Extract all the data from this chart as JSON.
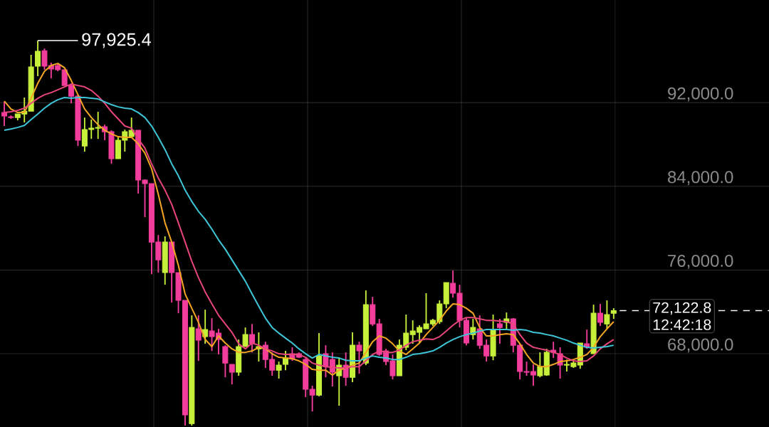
{
  "chart_data": {
    "type": "candlestick",
    "categories": [
      null,
      null,
      null,
      null,
      null,
      null,
      null,
      null,
      null,
      null,
      null,
      null,
      null,
      null,
      null,
      null,
      null,
      null,
      null,
      null,
      null,
      null,
      null,
      null,
      null,
      null,
      null,
      null,
      null,
      null,
      null,
      null,
      null,
      null,
      null,
      null,
      null,
      null,
      null,
      null,
      null,
      null,
      null,
      null,
      null,
      null,
      null,
      null,
      null,
      null,
      null,
      null,
      null,
      null,
      null,
      null,
      null,
      null,
      null,
      null,
      null,
      null,
      null,
      null,
      null,
      null,
      null,
      null,
      null,
      null,
      null,
      null,
      null,
      null,
      null,
      null,
      null,
      null,
      null,
      null,
      null,
      null,
      null,
      null,
      null,
      null,
      null,
      null,
      null,
      null,
      null,
      null
    ],
    "ohlc": [
      [
        91050,
        92070,
        89760,
        90710
      ],
      [
        90640,
        90780,
        90440,
        90570
      ],
      [
        90570,
        90910,
        90300,
        90910
      ],
      [
        90910,
        92480,
        90100,
        91180
      ],
      [
        91180,
        96560,
        91180,
        95400
      ],
      [
        95470,
        97925.4,
        94520,
        96900
      ],
      [
        96960,
        97170,
        95130,
        95470
      ],
      [
        95540,
        95810,
        94310,
        95200
      ],
      [
        95540,
        95740,
        94990,
        95130
      ],
      [
        95130,
        95200,
        93630,
        93630
      ],
      [
        93630,
        93770,
        91930,
        92610
      ],
      [
        92610,
        92750,
        87850,
        88400
      ],
      [
        87850,
        90570,
        87310,
        89420
      ],
      [
        89420,
        90370,
        88530,
        89550
      ],
      [
        89550,
        91120,
        88530,
        89620
      ],
      [
        89690,
        89890,
        88400,
        89210
      ],
      [
        89210,
        89350,
        86150,
        86630
      ],
      [
        86630,
        88670,
        86630,
        88400
      ],
      [
        88400,
        89420,
        87310,
        89210
      ],
      [
        88740,
        90570,
        88670,
        89350
      ],
      [
        89350,
        89350,
        83300,
        84590
      ],
      [
        84590,
        84660,
        81050,
        84250
      ],
      [
        84250,
        84250,
        75610,
        78670
      ],
      [
        78670,
        79350,
        75750,
        76970
      ],
      [
        75750,
        79220,
        74590,
        78670
      ],
      [
        78670,
        78670,
        72890,
        75750
      ],
      [
        75750,
        75750,
        71870,
        73100
      ],
      [
        73100,
        73100,
        61130,
        62150
      ],
      [
        61330,
        71670,
        61130,
        70510
      ],
      [
        70380,
        71670,
        67320,
        69290
      ],
      [
        69630,
        72210,
        68950,
        70310
      ],
      [
        70170,
        71400,
        68270,
        69630
      ],
      [
        69970,
        70380,
        67930,
        69360
      ],
      [
        68680,
        68810,
        65750,
        67110
      ],
      [
        66980,
        66980,
        65070,
        66230
      ],
      [
        66230,
        69360,
        65890,
        68680
      ],
      [
        68680,
        70510,
        68680,
        69830
      ],
      [
        69830,
        70850,
        68130,
        68950
      ],
      [
        68470,
        70040,
        67250,
        68680
      ],
      [
        68810,
        69150,
        66640,
        67450
      ],
      [
        67450,
        68130,
        65890,
        66430
      ],
      [
        66430,
        67250,
        65620,
        66910
      ],
      [
        66980,
        68270,
        66430,
        67590
      ],
      [
        68000,
        68610,
        67320,
        67520
      ],
      [
        68000,
        68130,
        67590,
        67660
      ],
      [
        67450,
        67590,
        63850,
        64600
      ],
      [
        64600,
        64940,
        62490,
        64050
      ],
      [
        64050,
        69970,
        63920,
        67790
      ],
      [
        68000,
        68810,
        65750,
        66770
      ],
      [
        67450,
        68130,
        64870,
        66230
      ],
      [
        65890,
        67660,
        63030,
        66910
      ],
      [
        66910,
        68130,
        64940,
        65750
      ],
      [
        65750,
        70040,
        65280,
        68810
      ],
      [
        68810,
        69150,
        66090,
        68270
      ],
      [
        67110,
        74050,
        66910,
        72690
      ],
      [
        72690,
        73440,
        70650,
        70850
      ],
      [
        70850,
        71330,
        67790,
        67930
      ],
      [
        68270,
        68470,
        66910,
        67250
      ],
      [
        67320,
        67930,
        65550,
        65890
      ],
      [
        65890,
        69360,
        65890,
        68810
      ],
      [
        68610,
        71740,
        68340,
        69970
      ],
      [
        69830,
        71190,
        68950,
        70170
      ],
      [
        70040,
        70720,
        69020,
        70510
      ],
      [
        70380,
        73780,
        70380,
        70850
      ],
      [
        70850,
        71330,
        70650,
        71190
      ],
      [
        71060,
        73100,
        70850,
        72760
      ],
      [
        72760,
        74800,
        72350,
        74800
      ],
      [
        74730,
        75950,
        73370,
        73780
      ],
      [
        73780,
        74590,
        70510,
        71190
      ],
      [
        71190,
        71400,
        68810,
        69020
      ],
      [
        69830,
        71330,
        69360,
        70510
      ],
      [
        70380,
        71670,
        68470,
        68810
      ],
      [
        68810,
        69360,
        67250,
        67790
      ],
      [
        67790,
        71740,
        67380,
        70310
      ],
      [
        70850,
        71330,
        68950,
        70510
      ],
      [
        70990,
        71940,
        70380,
        71330
      ],
      [
        71330,
        71400,
        68130,
        68810
      ],
      [
        68810,
        69020,
        65550,
        66300
      ],
      [
        66300,
        67250,
        65890,
        66230
      ],
      [
        66300,
        66980,
        64940,
        65960
      ],
      [
        65890,
        68130,
        65750,
        66770
      ],
      [
        65960,
        68470,
        65890,
        68130
      ],
      [
        68340,
        69150,
        67590,
        68130
      ],
      [
        68000,
        68610,
        65620,
        66910
      ],
      [
        66910,
        67450,
        66300,
        66980
      ],
      [
        66770,
        67320,
        66640,
        67110
      ],
      [
        66910,
        69020,
        66570,
        69020
      ],
      [
        68950,
        70310,
        68470,
        68610
      ],
      [
        68000,
        72690,
        68000,
        71870
      ],
      [
        71870,
        72760,
        70650,
        70990
      ],
      [
        70850,
        73100,
        70380,
        71740
      ],
      [
        71870,
        72350,
        71330,
        72122.8
      ]
    ],
    "colors": [
      "#f23d9c",
      "#f23d9c",
      "#c6f03a",
      "#c6f03a",
      "#c6f03a",
      "#c6f03a",
      "#f23d9c",
      "#f23d9c",
      "#f23d9c",
      "#f23d9c",
      "#f23d9c",
      "#f23d9c",
      "#c6f03a",
      "#c6f03a",
      "#c6f03a",
      "#f23d9c",
      "#f23d9c",
      "#c6f03a",
      "#c6f03a",
      "#c6f03a",
      "#f23d9c",
      "#f23d9c",
      "#f23d9c",
      "#f23d9c",
      "#c6f03a",
      "#f23d9c",
      "#f23d9c",
      "#f23d9c",
      "#c6f03a",
      "#f23d9c",
      "#c6f03a",
      "#f23d9c",
      "#f23d9c",
      "#f23d9c",
      "#f23d9c",
      "#c6f03a",
      "#c6f03a",
      "#f23d9c",
      "#c6f03a",
      "#f23d9c",
      "#f23d9c",
      "#c6f03a",
      "#c6f03a",
      "#f23d9c",
      "#f23d9c",
      "#f23d9c",
      "#f23d9c",
      "#c6f03a",
      "#f23d9c",
      "#f23d9c",
      "#c6f03a",
      "#f23d9c",
      "#c6f03a",
      "#f23d9c",
      "#c6f03a",
      "#f23d9c",
      "#f23d9c",
      "#f23d9c",
      "#f23d9c",
      "#c6f03a",
      "#c6f03a",
      "#c6f03a",
      "#c6f03a",
      "#c6f03a",
      "#c6f03a",
      "#c6f03a",
      "#c6f03a",
      "#f23d9c",
      "#f23d9c",
      "#f23d9c",
      "#c6f03a",
      "#f23d9c",
      "#f23d9c",
      "#c6f03a",
      "#f23d9c",
      "#c6f03a",
      "#f23d9c",
      "#f23d9c",
      "#f23d9c",
      "#f23d9c",
      "#c6f03a",
      "#c6f03a",
      "#f23d9c",
      "#f23d9c",
      "#c6f03a",
      "#c6f03a",
      "#c6f03a",
      "#f23d9c",
      "#c6f03a",
      "#f23d9c",
      "#c6f03a",
      "#c6f03a"
    ],
    "series": [
      {
        "type": "line",
        "color": "#f5a623",
        "values": [
          92140,
          91390,
          91050,
          91050,
          92410,
          93840,
          94990,
          95540,
          95740,
          95330,
          94110,
          92750,
          91390,
          90570,
          89890,
          89350,
          89010,
          88740,
          88670,
          88670,
          88060,
          87170,
          85680,
          83230,
          80510,
          78670,
          76430,
          73710,
          72350,
          70990,
          69360,
          68680,
          69700,
          69020,
          68470,
          68130,
          68130,
          68270,
          68610,
          68470,
          68000,
          67660,
          67590,
          67520,
          67320,
          66980,
          66500,
          66430,
          66430,
          65960,
          66430,
          66640,
          66910,
          67110,
          68130,
          69150,
          69700,
          69490,
          68950,
          68270,
          67930,
          68470,
          69020,
          69830,
          70510,
          71190,
          72080,
          72760,
          72690,
          72350,
          71870,
          70510,
          69700,
          69700,
          69830,
          69900,
          69830,
          68950,
          67930,
          67110,
          66770,
          66770,
          66980,
          67250,
          67320,
          67450,
          67660,
          67930,
          68610,
          69630,
          70380,
          71060
        ]
      },
      {
        "type": "line",
        "color": "#e8457a",
        "values": [
          91050,
          91120,
          91250,
          91460,
          91930,
          92410,
          92750,
          92950,
          93220,
          93500,
          93770,
          93630,
          93500,
          93160,
          92610,
          91930,
          91120,
          90440,
          89760,
          89550,
          88530,
          87650,
          86150,
          84790,
          83640,
          82280,
          80510,
          78670,
          76840,
          75270,
          73910,
          72760,
          71670,
          70850,
          70040,
          68950,
          68470,
          69020,
          68810,
          68470,
          68270,
          68000,
          67930,
          67930,
          67930,
          67660,
          67110,
          66910,
          66770,
          66700,
          66640,
          66640,
          66770,
          66770,
          67320,
          67930,
          68270,
          68130,
          68130,
          68340,
          68810,
          69150,
          69290,
          69420,
          69360,
          69630,
          70170,
          70720,
          71190,
          71460,
          71460,
          71330,
          71190,
          71190,
          71120,
          71060,
          70850,
          69830,
          69020,
          68610,
          68470,
          68340,
          68130,
          67930,
          67590,
          67320,
          67250,
          67320,
          67790,
          68470,
          68950,
          69360
        ]
      },
      {
        "type": "line",
        "color": "#3ec6d8",
        "values": [
          89350,
          89480,
          89620,
          89820,
          90370,
          90910,
          91460,
          91930,
          92270,
          92480,
          92410,
          92480,
          92480,
          92410,
          92340,
          92070,
          91800,
          91590,
          91460,
          91390,
          91050,
          90570,
          89760,
          88670,
          87510,
          86150,
          85000,
          83640,
          82550,
          81600,
          80850,
          79900,
          78880,
          77990,
          76970,
          75950,
          74930,
          73710,
          72550,
          71400,
          70510,
          69970,
          69490,
          69020,
          68470,
          68000,
          67590,
          67930,
          67790,
          67660,
          67590,
          67380,
          67320,
          67320,
          67590,
          67790,
          67660,
          67590,
          67450,
          67450,
          67660,
          67930,
          68000,
          68130,
          68270,
          68610,
          69020,
          69360,
          69630,
          69830,
          69970,
          70170,
          70310,
          70310,
          70310,
          70310,
          70240,
          70310,
          70240,
          70040,
          69970,
          69830,
          69700,
          69490,
          69290,
          69020,
          68810,
          68610,
          68540,
          68610,
          68680,
          68810
        ]
      }
    ],
    "ylim": [
      61000,
      101800
    ],
    "yticks": [
      {
        "value": 68000,
        "label": "68,000.0"
      },
      {
        "value": 76000,
        "label": "76,000.0"
      },
      {
        "value": 84000,
        "label": "84,000.0"
      },
      {
        "value": 92000,
        "label": "92,000.0"
      }
    ],
    "grid": true,
    "tick_labels": "y",
    "ref_lines": [
      {
        "axis": "y",
        "value": 72122.8,
        "label": "72,122.8",
        "line_style": "dashed",
        "color": "#ffffff"
      }
    ],
    "annotations": [
      "97,925.4",
      "12:42:18"
    ]
  }
}
